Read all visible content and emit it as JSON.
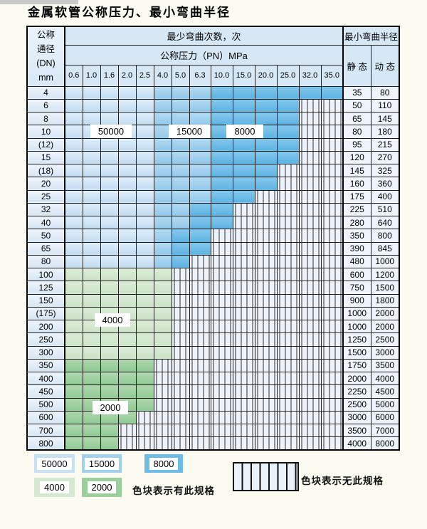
{
  "title": "金属软管公称压力、最小弯曲半径",
  "table": {
    "corner_lines": [
      "公称",
      "通径",
      "(DN)",
      "mm"
    ],
    "bend_cycles_header": "最少弯曲次数，次",
    "pressure_header": "公称压力（PN）MPa",
    "radius_header": "最小弯曲半径",
    "static_label": "静 态",
    "dynamic_label": "动 态",
    "pressures": [
      "0.6",
      "1.0",
      "1.6",
      "2.0",
      "2.5",
      "4.0",
      "5.0",
      "6.3",
      "10.0",
      "15.0",
      "20.0",
      "25.0",
      "32.0",
      "35.0"
    ],
    "cell_codes": {
      "L": "50000",
      "M": "15000",
      "D": "8000",
      "g": "4000",
      "G": "2000",
      ".": "no-spec"
    },
    "rows": [
      {
        "dn": "4",
        "cells": "LLLLLMMMDDDDDD",
        "static": "35",
        "dynamic": "80"
      },
      {
        "dn": "6",
        "cells": "LLLLLMMMDDDD..",
        "static": "50",
        "dynamic": "110"
      },
      {
        "dn": "8",
        "cells": "LLLLLMMMDDDD..",
        "static": "65",
        "dynamic": "145"
      },
      {
        "dn": "10",
        "cells": "LLLLLMMMDDDD..",
        "static": "80",
        "dynamic": "180"
      },
      {
        "dn": "(12)",
        "cells": "LLLLLMMMDDDD..",
        "static": "95",
        "dynamic": "215"
      },
      {
        "dn": "15",
        "cells": "LLLLLMMMDDDD..",
        "static": "120",
        "dynamic": "270"
      },
      {
        "dn": "(18)",
        "cells": "LLLLLMMMDDD...",
        "static": "145",
        "dynamic": "325"
      },
      {
        "dn": "20",
        "cells": "LLLLLMMMDDD...",
        "static": "160",
        "dynamic": "360"
      },
      {
        "dn": "25",
        "cells": "LLLLLMMMDD....",
        "static": "175",
        "dynamic": "400"
      },
      {
        "dn": "32",
        "cells": "LLLLLMMDD.....",
        "static": "225",
        "dynamic": "510"
      },
      {
        "dn": "40",
        "cells": "LLLLLMMDD.....",
        "static": "280",
        "dynamic": "640"
      },
      {
        "dn": "50",
        "cells": "LLLLLMDD......",
        "static": "350",
        "dynamic": "800"
      },
      {
        "dn": "65",
        "cells": "LLLLLMDD......",
        "static": "390",
        "dynamic": "845"
      },
      {
        "dn": "80",
        "cells": "LLLLLMD.......",
        "static": "480",
        "dynamic": "1000"
      },
      {
        "dn": "100",
        "cells": "gggggg........",
        "static": "600",
        "dynamic": "1200"
      },
      {
        "dn": "125",
        "cells": "gggggg........",
        "static": "750",
        "dynamic": "1500"
      },
      {
        "dn": "150",
        "cells": "gggggg........",
        "static": "900",
        "dynamic": "1800"
      },
      {
        "dn": "(175)",
        "cells": "gggggg........",
        "static": "1000",
        "dynamic": "2000"
      },
      {
        "dn": "200",
        "cells": "gggggg........",
        "static": "1000",
        "dynamic": "2000"
      },
      {
        "dn": "250",
        "cells": "gggggg........",
        "static": "1250",
        "dynamic": "2500"
      },
      {
        "dn": "300",
        "cells": "gggggg........",
        "static": "1500",
        "dynamic": "3000"
      },
      {
        "dn": "350",
        "cells": "GGGGG.........",
        "static": "1750",
        "dynamic": "3500"
      },
      {
        "dn": "400",
        "cells": "GGGGG.........",
        "static": "2000",
        "dynamic": "4000"
      },
      {
        "dn": "450",
        "cells": "GGGGG.........",
        "static": "2250",
        "dynamic": "4500"
      },
      {
        "dn": "500",
        "cells": "GGGGG.........",
        "static": "2500",
        "dynamic": "5000"
      },
      {
        "dn": "600",
        "cells": "GGGG..........",
        "static": "3000",
        "dynamic": "6000"
      },
      {
        "dn": "700",
        "cells": "GGG...........",
        "static": "3500",
        "dynamic": "7000"
      },
      {
        "dn": "800",
        "cells": "GGG...........",
        "static": "4000",
        "dynamic": "8000"
      }
    ]
  },
  "overlays": {
    "b50000": "50000",
    "b15000": "15000",
    "b8000": "8000",
    "b4000": "4000",
    "b2000": "2000"
  },
  "legend": {
    "chips": [
      {
        "label": "50000",
        "color": "#c7e0f4"
      },
      {
        "label": "15000",
        "color": "#a2d1ee"
      },
      {
        "label": "8000",
        "color": "#6cbce6"
      },
      {
        "label": "4000",
        "color": "#d5e9d0"
      },
      {
        "label": "2000",
        "color": "#9bcf9e"
      }
    ],
    "has_spec_text": "色块表示有此规格",
    "no_spec_text": "色块表示无此规格"
  },
  "colors": {
    "band_50000": "#c7e0f4",
    "band_15000": "#a2d1ee",
    "band_8000": "#6cbce6",
    "band_4000": "#d5e9d0",
    "band_2000": "#9bcf9e",
    "grid": "#1f1f1f",
    "header_bg": "#d6e8f5"
  }
}
